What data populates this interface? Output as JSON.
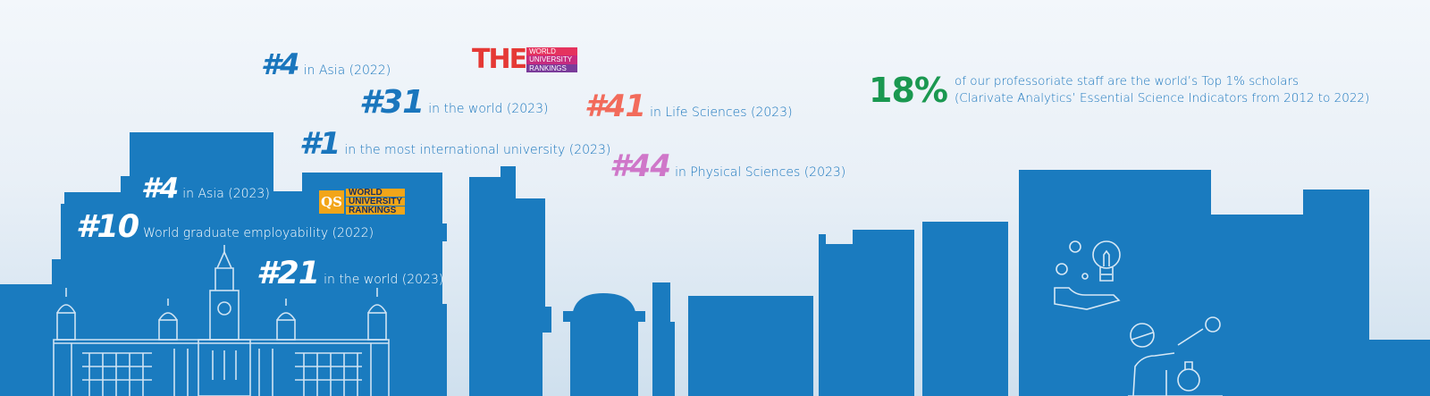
{
  "colors": {
    "skyline": "#1a7bbf",
    "text_blue": "#1a76bd",
    "salmon": "#f26b5b",
    "pink": "#cf77c9",
    "green": "#1a9850",
    "white": "#ffffff"
  },
  "logos": {
    "the": {
      "mark": "THE",
      "lines": [
        "WORLD",
        "UNIVERSITY",
        "RANKINGS"
      ],
      "colors": [
        "#e5335e",
        "#c62c7f",
        "#7a3b9a"
      ]
    },
    "qs": {
      "mark": "QS",
      "lines": [
        "WORLD",
        "UNIVERSITY",
        "RANKINGS"
      ]
    }
  },
  "the_rankings": {
    "asia": {
      "rank": "#4",
      "text": "in Asia (2022)"
    },
    "world": {
      "rank": "#31",
      "text": "in the world (2023)"
    },
    "international": {
      "rank": "#1",
      "text": "in the most international university (2023)"
    },
    "life_sciences": {
      "rank": "#41",
      "text": "in Life Sciences (2023)"
    },
    "physical_sciences": {
      "rank": "#44",
      "text": "in Physical Sciences (2023)"
    }
  },
  "qs_rankings": {
    "asia": {
      "rank": "#4",
      "text": "in Asia (2023)"
    },
    "employability": {
      "rank": "#10",
      "text": "World graduate employability (2022)"
    },
    "world": {
      "rank": "#21",
      "text": "in the world (2023)"
    }
  },
  "scholars": {
    "percent": "18%",
    "line1": "of our professoriate staff are the world’s Top 1% scholars",
    "line2": "(Clarivate Analytics’ Essential Science Indicators from 2012 to 2022)"
  },
  "icons": [
    "main-building-icon",
    "lightbulb-gears-hand-icon",
    "scientist-icon"
  ]
}
